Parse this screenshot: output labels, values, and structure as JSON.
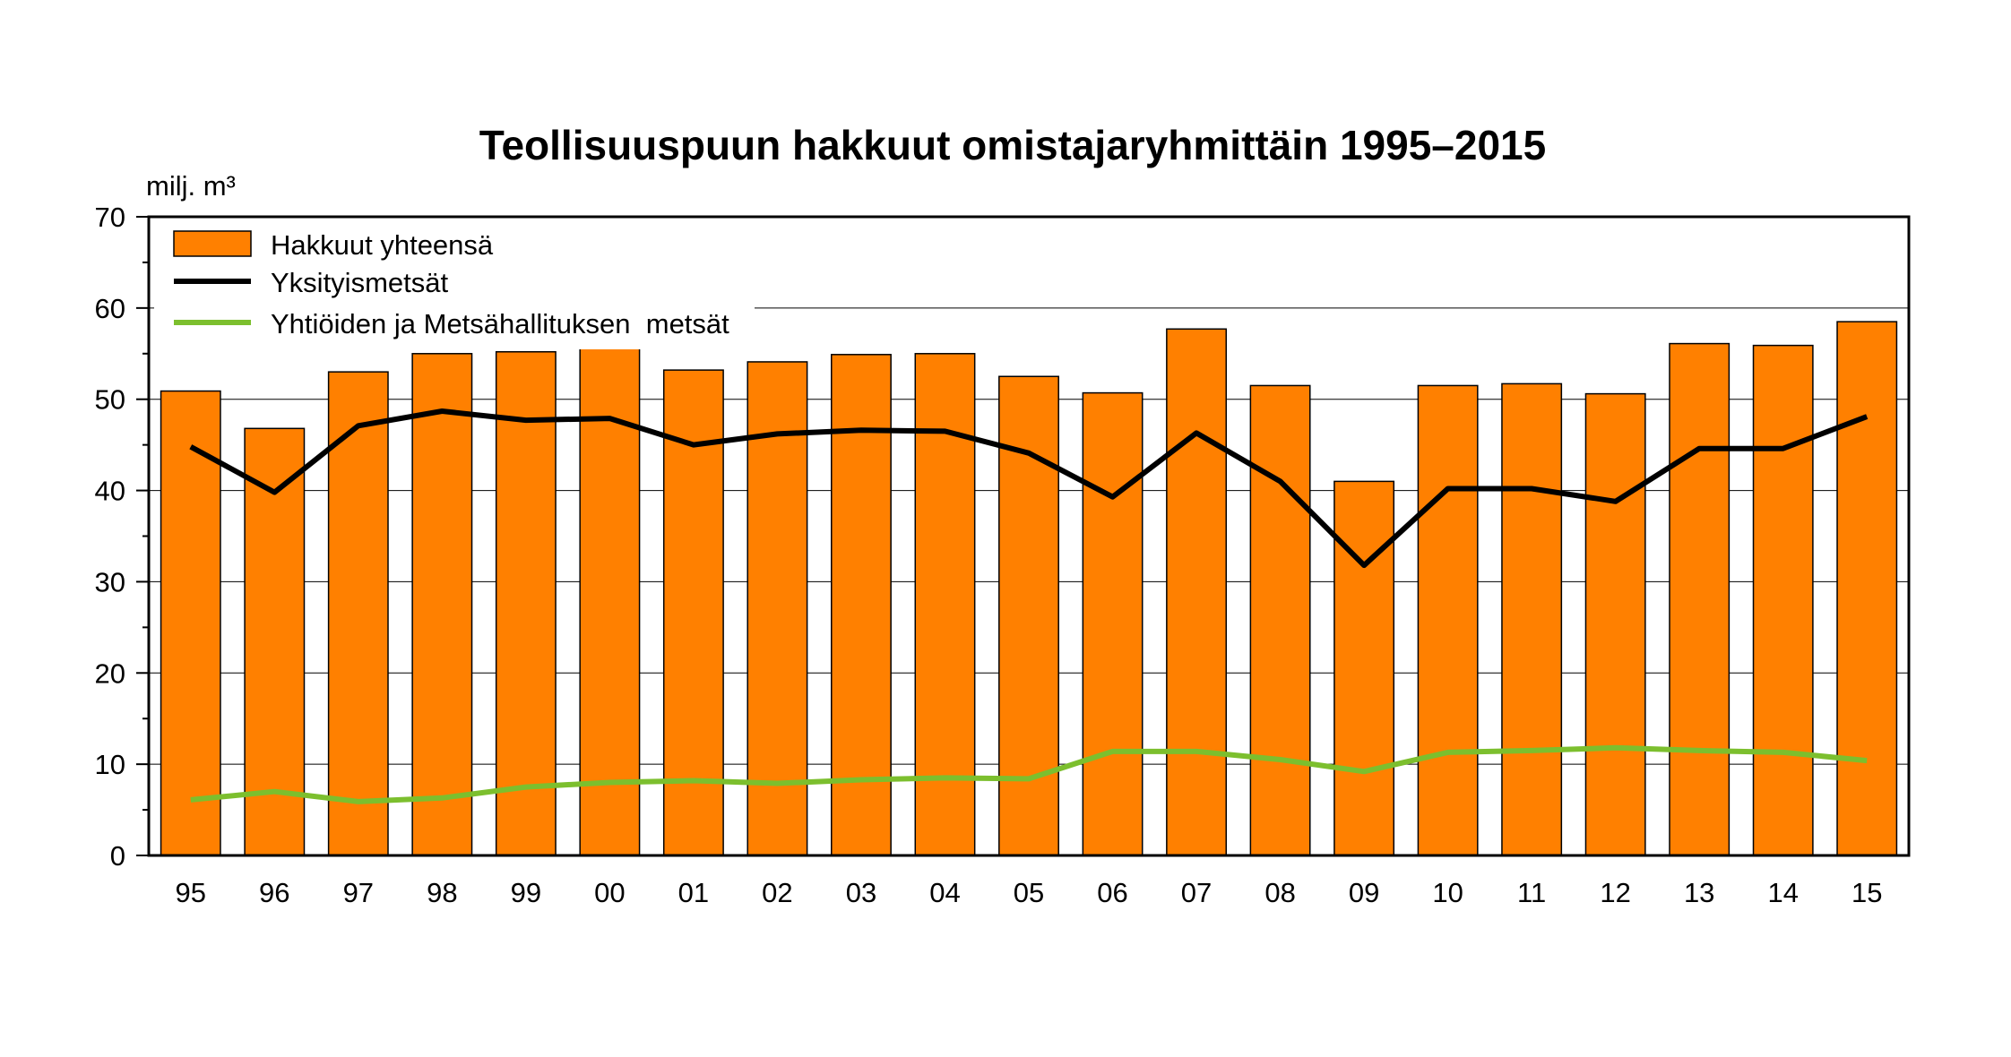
{
  "chart_data": {
    "type": "bar",
    "title": "Teollisuuspuun hakkuut omistajaryhmittäin 1995–2015",
    "ylabel": "milj. m³",
    "xlabel": "",
    "ylim": [
      0,
      70
    ],
    "yticks": [
      0,
      10,
      20,
      30,
      40,
      50,
      60,
      70
    ],
    "grid": true,
    "legend_position": "top-left",
    "categories": [
      "95",
      "96",
      "97",
      "98",
      "99",
      "00",
      "01",
      "02",
      "03",
      "04",
      "05",
      "06",
      "07",
      "08",
      "09",
      "10",
      "11",
      "12",
      "13",
      "14",
      "15"
    ],
    "series": [
      {
        "name": "Hakkuut yhteensä",
        "type": "bar",
        "color": "#FF8000",
        "values": [
          50.9,
          46.8,
          53.0,
          55.0,
          55.2,
          55.9,
          53.2,
          54.1,
          54.9,
          55.0,
          52.5,
          50.7,
          57.7,
          51.5,
          41.0,
          51.5,
          51.7,
          50.6,
          56.1,
          55.9,
          58.5
        ]
      },
      {
        "name": "Yksityismetsät",
        "type": "line",
        "color": "#000000",
        "values": [
          44.8,
          39.8,
          47.1,
          48.7,
          47.7,
          47.9,
          45.0,
          46.2,
          46.6,
          46.5,
          44.1,
          39.3,
          46.3,
          41.0,
          31.8,
          40.2,
          40.2,
          38.8,
          44.6,
          44.6,
          48.1
        ]
      },
      {
        "name": "Yhtiöiden ja Metsähallituksen  metsät",
        "type": "line",
        "color": "#7CBF2E",
        "values": [
          6.1,
          7.0,
          5.9,
          6.3,
          7.5,
          8.0,
          8.2,
          7.9,
          8.3,
          8.5,
          8.4,
          11.4,
          11.4,
          10.5,
          9.2,
          11.3,
          11.5,
          11.8,
          11.5,
          11.3,
          10.4
        ]
      }
    ]
  }
}
